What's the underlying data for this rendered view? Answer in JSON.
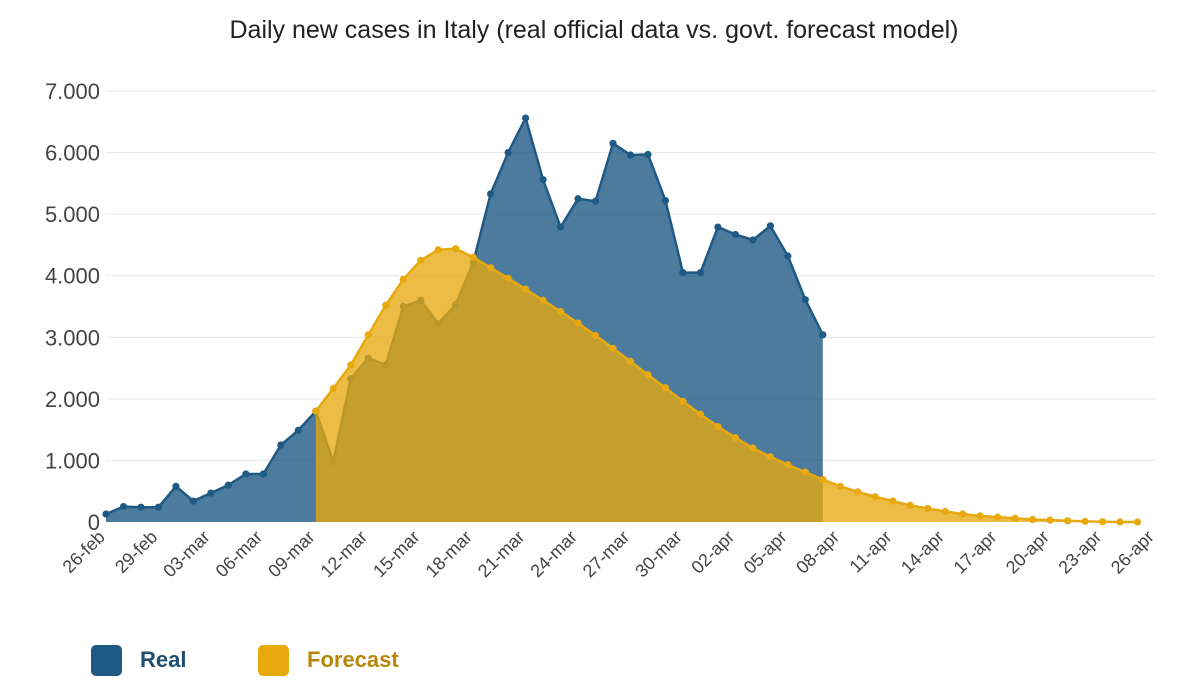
{
  "chart_data": {
    "type": "area",
    "title": "Daily new cases in Italy (real official data vs. govt. forecast model)",
    "xlabel": "",
    "ylabel": "",
    "ylim": [
      0,
      7000
    ],
    "yticks": [
      0,
      1000,
      2000,
      3000,
      4000,
      5000,
      6000,
      7000
    ],
    "ytick_labels": [
      "0",
      "1.000",
      "2.000",
      "3.000",
      "4.000",
      "5.000",
      "6.000",
      "7.000"
    ],
    "x_start": "26-feb",
    "x_end": "26-apr",
    "xtick_labels": [
      "26-feb",
      "29-feb",
      "03-mar",
      "06-mar",
      "09-mar",
      "12-mar",
      "15-mar",
      "18-mar",
      "21-mar",
      "24-mar",
      "27-mar",
      "30-mar",
      "02-apr",
      "05-apr",
      "08-apr",
      "11-apr",
      "14-apr",
      "17-apr",
      "20-apr",
      "23-apr",
      "26-apr"
    ],
    "grid": true,
    "legend_position": "bottom-left",
    "series": [
      {
        "name": "Real",
        "color": "#1f5a85",
        "start_day": 0,
        "values": [
          130,
          250,
          240,
          240,
          580,
          340,
          470,
          600,
          780,
          780,
          1250,
          1490,
          1800,
          980,
          2330,
          2660,
          2550,
          3500,
          3600,
          3220,
          3530,
          4210,
          5330,
          6000,
          6560,
          5560,
          4790,
          5250,
          5210,
          6150,
          5960,
          5970,
          5220,
          4050,
          4050,
          4790,
          4670,
          4580,
          4810,
          4320,
          3610,
          3040
        ]
      },
      {
        "name": "Forecast",
        "color": "#e8a90f",
        "start_day": 12,
        "values": [
          1800,
          2170,
          2550,
          3040,
          3520,
          3940,
          4250,
          4420,
          4440,
          4300,
          4130,
          3960,
          3780,
          3600,
          3420,
          3230,
          3030,
          2820,
          2610,
          2390,
          2180,
          1960,
          1750,
          1550,
          1370,
          1200,
          1060,
          930,
          810,
          690,
          580,
          490,
          410,
          340,
          270,
          220,
          170,
          130,
          100,
          80,
          60,
          40,
          30,
          20,
          10,
          5,
          0,
          0
        ]
      }
    ]
  }
}
